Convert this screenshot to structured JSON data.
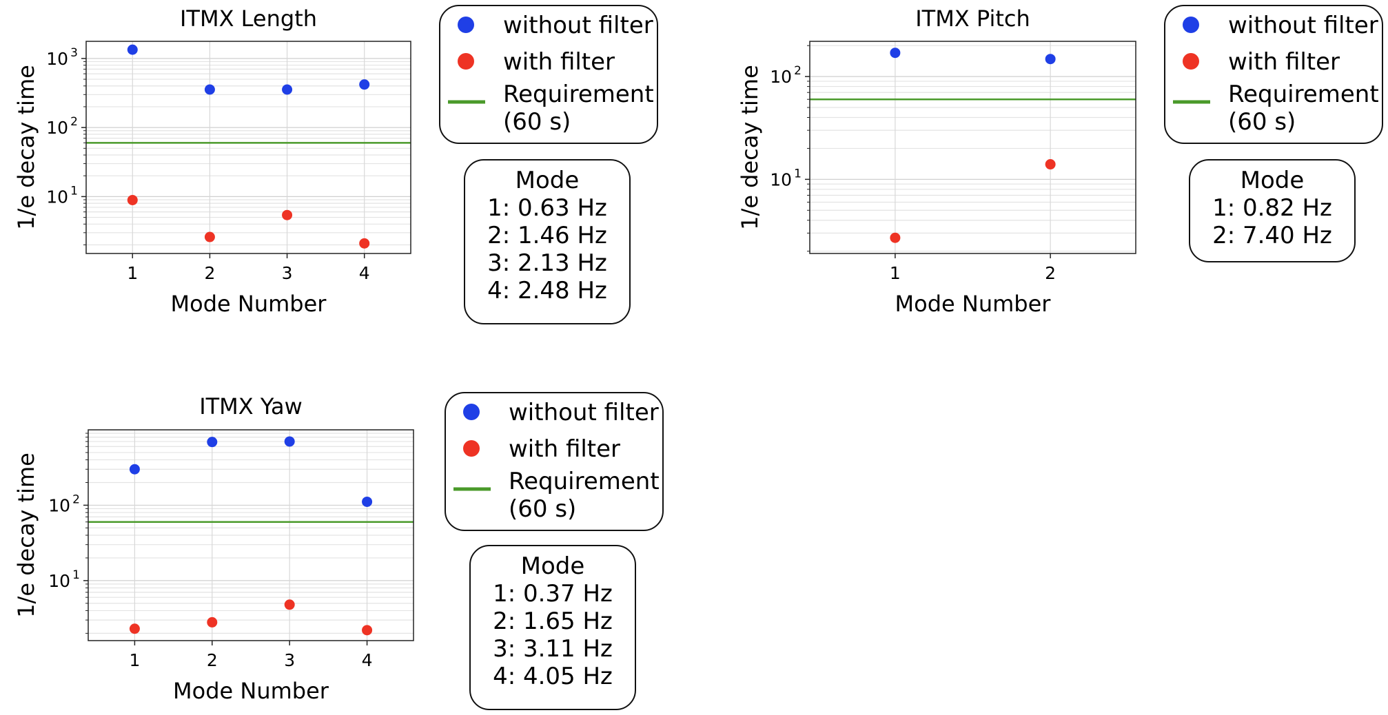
{
  "chart_data": [
    {
      "type": "scatter",
      "title": "ITMX Length",
      "xlabel": "Mode Number",
      "ylabel": "1/e decay time",
      "yscale": "log",
      "xlim": [
        0.4,
        4.6
      ],
      "ylim": [
        1.5,
        1770
      ],
      "x_ticks": [
        1,
        2,
        3,
        4
      ],
      "y_ticks": [
        {
          "value": 10,
          "label": "10",
          "sup": "1"
        },
        {
          "value": 100,
          "label": "10",
          "sup": "2"
        },
        {
          "value": 1000,
          "label": "10",
          "sup": "3"
        }
      ],
      "grid": true,
      "series": [
        {
          "name": "without filter",
          "color": "#1f3fe6",
          "x": [
            1,
            2,
            3,
            4
          ],
          "y": [
            1340,
            355,
            355,
            420
          ]
        },
        {
          "name": "with filter",
          "color": "#ee3324",
          "x": [
            1,
            2,
            3,
            4
          ],
          "y": [
            8.9,
            2.6,
            5.4,
            2.1
          ]
        }
      ],
      "reference_line": {
        "name": "Requirement",
        "name_line2": "(60 s)",
        "value": 60,
        "color": "#4a9a2a"
      },
      "legend_position": "right",
      "mode_box": {
        "title": "Mode",
        "lines": [
          "1: 0.63 Hz",
          "2: 1.46 Hz",
          "3: 2.13 Hz",
          "4: 2.48 Hz"
        ]
      }
    },
    {
      "type": "scatter",
      "title": "ITMX Pitch",
      "xlabel": "Mode Number",
      "ylabel": "1/e decay time",
      "yscale": "log",
      "xlim": [
        0.45,
        2.55
      ],
      "ylim": [
        1.9,
        220
      ],
      "x_ticks": [
        1,
        2
      ],
      "y_ticks": [
        {
          "value": 10,
          "label": "10",
          "sup": "1"
        },
        {
          "value": 100,
          "label": "10",
          "sup": "2"
        }
      ],
      "grid": true,
      "series": [
        {
          "name": "without filter",
          "color": "#1f3fe6",
          "x": [
            1,
            2
          ],
          "y": [
            170,
            148
          ]
        },
        {
          "name": "with filter",
          "color": "#ee3324",
          "x": [
            1,
            2
          ],
          "y": [
            2.7,
            14
          ]
        }
      ],
      "reference_line": {
        "name": "Requirement",
        "name_line2": "(60 s)",
        "value": 60,
        "color": "#4a9a2a"
      },
      "legend_position": "right",
      "mode_box": {
        "title": "Mode",
        "lines": [
          "1: 0.82 Hz",
          "2: 7.40 Hz"
        ]
      }
    },
    {
      "type": "scatter",
      "title": "ITMX Yaw",
      "xlabel": "Mode Number",
      "ylabel": "1/e decay time",
      "yscale": "log",
      "xlim": [
        0.4,
        4.6
      ],
      "ylim": [
        1.6,
        1000
      ],
      "x_ticks": [
        1,
        2,
        3,
        4
      ],
      "y_ticks": [
        {
          "value": 10,
          "label": "10",
          "sup": "1"
        },
        {
          "value": 100,
          "label": "10",
          "sup": "2"
        }
      ],
      "grid": true,
      "series": [
        {
          "name": "without filter",
          "color": "#1f3fe6",
          "x": [
            1,
            2,
            3,
            4
          ],
          "y": [
            300,
            690,
            700,
            111
          ]
        },
        {
          "name": "with filter",
          "color": "#ee3324",
          "x": [
            1,
            2,
            3,
            4
          ],
          "y": [
            2.3,
            2.8,
            4.8,
            2.2
          ]
        }
      ],
      "reference_line": {
        "name": "Requirement",
        "name_line2": "(60 s)",
        "value": 60,
        "color": "#4a9a2a"
      },
      "legend_position": "right",
      "mode_box": {
        "title": "Mode",
        "lines": [
          "1: 0.37 Hz",
          "2: 1.65 Hz",
          "3: 3.11 Hz",
          "4: 4.05 Hz"
        ]
      }
    }
  ]
}
